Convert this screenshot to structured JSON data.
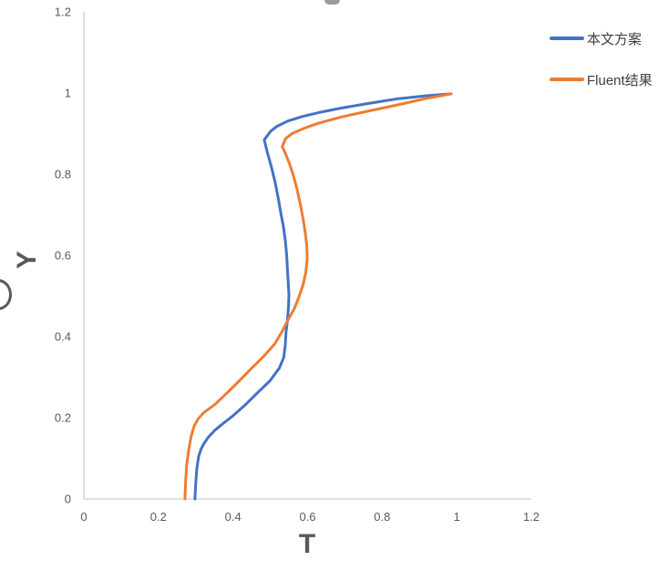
{
  "chart_data": {
    "type": "line",
    "title": "",
    "xlabel": "T",
    "ylabel": "Y",
    "xlim": [
      0,
      1.2
    ],
    "ylim": [
      0,
      1.2
    ],
    "x_ticks": [
      0,
      0.2,
      0.4,
      0.6,
      0.8,
      1,
      1.2
    ],
    "x_tick_labels": [
      "0",
      "0.2",
      "0.4",
      "0.6",
      "0.8",
      "1",
      "1.2"
    ],
    "y_ticks": [
      0,
      0.2,
      0.4,
      0.6,
      0.8,
      1,
      1.2
    ],
    "y_tick_labels": [
      "0",
      "0.2",
      "0.4",
      "0.6",
      "0.8",
      "1",
      "1.2"
    ],
    "grid": false,
    "legend_position": "top-right",
    "axis_color": "#c0c0c0",
    "text_color": "#595959",
    "series": [
      {
        "name": "本文方案",
        "color": "#4472C4",
        "points": [
          [
            0.298,
            0.0
          ],
          [
            0.3,
            0.04
          ],
          [
            0.303,
            0.075
          ],
          [
            0.308,
            0.105
          ],
          [
            0.314,
            0.122
          ],
          [
            0.32,
            0.133
          ],
          [
            0.332,
            0.15
          ],
          [
            0.35,
            0.168
          ],
          [
            0.372,
            0.185
          ],
          [
            0.4,
            0.205
          ],
          [
            0.433,
            0.232
          ],
          [
            0.466,
            0.262
          ],
          [
            0.499,
            0.291
          ],
          [
            0.524,
            0.322
          ],
          [
            0.536,
            0.348
          ],
          [
            0.54,
            0.378
          ],
          [
            0.542,
            0.41
          ],
          [
            0.546,
            0.44
          ],
          [
            0.549,
            0.475
          ],
          [
            0.55,
            0.505
          ],
          [
            0.548,
            0.535
          ],
          [
            0.546,
            0.565
          ],
          [
            0.544,
            0.6
          ],
          [
            0.54,
            0.638
          ],
          [
            0.535,
            0.672
          ],
          [
            0.528,
            0.706
          ],
          [
            0.521,
            0.742
          ],
          [
            0.513,
            0.78
          ],
          [
            0.503,
            0.818
          ],
          [
            0.492,
            0.854
          ],
          [
            0.487,
            0.872
          ],
          [
            0.484,
            0.885
          ],
          [
            0.502,
            0.907
          ],
          [
            0.518,
            0.918
          ],
          [
            0.547,
            0.931
          ],
          [
            0.585,
            0.942
          ],
          [
            0.63,
            0.952
          ],
          [
            0.69,
            0.963
          ],
          [
            0.76,
            0.974
          ],
          [
            0.843,
            0.986
          ],
          [
            0.915,
            0.993
          ],
          [
            0.985,
            0.998
          ]
        ]
      },
      {
        "name": "Fluent结果",
        "color": "#ED7D31",
        "points": [
          [
            0.271,
            0.0
          ],
          [
            0.273,
            0.045
          ],
          [
            0.276,
            0.085
          ],
          [
            0.281,
            0.12
          ],
          [
            0.288,
            0.155
          ],
          [
            0.296,
            0.18
          ],
          [
            0.307,
            0.198
          ],
          [
            0.322,
            0.213
          ],
          [
            0.352,
            0.233
          ],
          [
            0.385,
            0.262
          ],
          [
            0.417,
            0.291
          ],
          [
            0.45,
            0.322
          ],
          [
            0.483,
            0.352
          ],
          [
            0.512,
            0.382
          ],
          [
            0.53,
            0.41
          ],
          [
            0.547,
            0.44
          ],
          [
            0.564,
            0.468
          ],
          [
            0.577,
            0.498
          ],
          [
            0.588,
            0.528
          ],
          [
            0.595,
            0.558
          ],
          [
            0.599,
            0.59
          ],
          [
            0.598,
            0.622
          ],
          [
            0.594,
            0.655
          ],
          [
            0.588,
            0.69
          ],
          [
            0.58,
            0.728
          ],
          [
            0.571,
            0.766
          ],
          [
            0.561,
            0.8
          ],
          [
            0.55,
            0.83
          ],
          [
            0.54,
            0.852
          ],
          [
            0.532,
            0.868
          ],
          [
            0.541,
            0.888
          ],
          [
            0.56,
            0.901
          ],
          [
            0.59,
            0.913
          ],
          [
            0.63,
            0.926
          ],
          [
            0.69,
            0.941
          ],
          [
            0.76,
            0.955
          ],
          [
            0.843,
            0.971
          ],
          [
            0.915,
            0.986
          ],
          [
            0.985,
            0.998
          ]
        ]
      }
    ]
  },
  "artifacts": {
    "top_fragment": "cropped-title-descender",
    "left_fragment": "cropped-glyph-arc"
  }
}
